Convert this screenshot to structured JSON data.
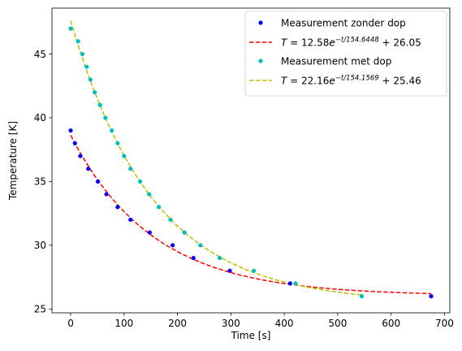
{
  "chart_data": {
    "type": "scatter",
    "xlabel": "Time [s]",
    "ylabel": "Temperature [K]",
    "xlim": [
      -35,
      710
    ],
    "ylim": [
      24.7,
      48.6
    ],
    "xticks": [
      0,
      100,
      200,
      300,
      400,
      500,
      600,
      700
    ],
    "yticks": [
      25,
      30,
      35,
      40,
      45
    ],
    "grid": false,
    "legend_position": "top-right",
    "series": [
      {
        "name": "Measurement zonder dop",
        "kind": "points",
        "color": "#0000ff",
        "x": [
          0,
          8,
          18,
          33,
          51,
          67,
          88,
          112,
          148,
          191,
          230,
          298,
          411,
          675
        ],
        "y": [
          39,
          38,
          37,
          36,
          35,
          34,
          33,
          32,
          31,
          30,
          29,
          28,
          27,
          26
        ]
      },
      {
        "name": "T = 12.58e^{-t/154.6448} + 26.05",
        "kind": "dashed-line",
        "color": "#ff0000",
        "fit": {
          "amplitude": 12.58,
          "tau": 154.6448,
          "offset": 26.05
        },
        "x_range": [
          0,
          675
        ]
      },
      {
        "name": "Measurement met dop",
        "kind": "points",
        "color": "#00bfbf",
        "x": [
          0,
          14,
          22,
          30,
          37,
          45,
          55,
          65,
          77,
          88,
          100,
          112,
          130,
          147,
          165,
          187,
          213,
          243,
          279,
          343,
          421,
          545
        ],
        "y": [
          47,
          46,
          45,
          44,
          43,
          42,
          41,
          40,
          39,
          38,
          37,
          36,
          35,
          34,
          33,
          32,
          31,
          30,
          29,
          28,
          27,
          26
        ]
      },
      {
        "name": "T = 22.16e^{-t/154.1569} + 25.46",
        "kind": "dashed-line",
        "color": "#bfbf00",
        "fit": {
          "amplitude": 22.16,
          "tau": 154.1569,
          "offset": 25.46
        },
        "x_range": [
          0,
          545
        ]
      }
    ]
  },
  "legend": {
    "entries": [
      {
        "type": "marker",
        "color": "#0000ff",
        "text": "Measurement zonder dop",
        "math": false
      },
      {
        "type": "line",
        "color": "#ff0000",
        "math": true,
        "amp": "12.58",
        "tau": "154.6448",
        "offset": "26.05"
      },
      {
        "type": "marker",
        "color": "#00bfbf",
        "text": "Measurement met dop",
        "math": false
      },
      {
        "type": "line",
        "color": "#bfbf00",
        "math": true,
        "amp": "22.16",
        "tau": "154.1569",
        "offset": "25.46"
      }
    ]
  }
}
